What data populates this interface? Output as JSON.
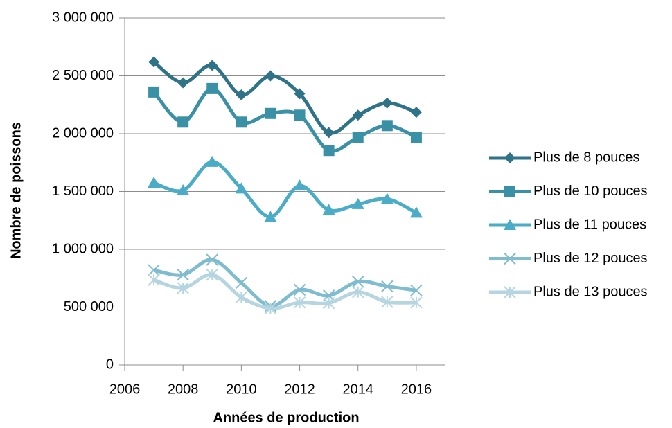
{
  "chart_data": {
    "type": "line",
    "x_label": "Années de production",
    "y_label": "Nombre de poissons",
    "x": [
      2007,
      2008,
      2009,
      2010,
      2011,
      2012,
      2013,
      2014,
      2015,
      2016
    ],
    "xlim": [
      2006,
      2017
    ],
    "xticks": [
      2006,
      2008,
      2010,
      2012,
      2014,
      2016
    ],
    "ylim": [
      0,
      3000000
    ],
    "yticks": [
      0,
      {
        "value": 500000,
        "label": "500 000"
      },
      {
        "value": 1000000,
        "label": "1 000 000"
      },
      {
        "value": 1500000,
        "label": "1 500 000"
      },
      {
        "value": 2000000,
        "label": "2 000 000"
      },
      {
        "value": 2500000,
        "label": "2 500 000"
      },
      {
        "value": 3000000,
        "label": "3 000 000"
      }
    ],
    "grid": true,
    "smooth": true,
    "legend": "right",
    "series": [
      {
        "name": "Plus de 8 pouces",
        "color": "#2e7387",
        "marker": "diamond",
        "values": [
          2620000,
          2440000,
          2590000,
          2335000,
          2500000,
          2345000,
          2010000,
          2160000,
          2265000,
          2185000
        ]
      },
      {
        "name": "Plus de 10 pouces",
        "color": "#3a91a6",
        "marker": "square",
        "values": [
          2360000,
          2100000,
          2390000,
          2100000,
          2175000,
          2160000,
          1855000,
          1970000,
          2070000,
          1970000
        ]
      },
      {
        "name": "Plus de 11 pouces",
        "color": "#4aacc6",
        "marker": "triangle",
        "values": [
          1575000,
          1510000,
          1755000,
          1525000,
          1280000,
          1550000,
          1340000,
          1390000,
          1435000,
          1315000
        ]
      },
      {
        "name": "Plus de 12 pouces",
        "color": "#7fbcd0",
        "marker": "x",
        "values": [
          820000,
          780000,
          910000,
          710000,
          510000,
          650000,
          600000,
          720000,
          680000,
          645000
        ]
      },
      {
        "name": "Plus de 13 pouces",
        "color": "#b5d5e0",
        "marker": "star",
        "values": [
          735000,
          665000,
          780000,
          585000,
          490000,
          540000,
          535000,
          630000,
          545000,
          540000
        ]
      }
    ]
  }
}
